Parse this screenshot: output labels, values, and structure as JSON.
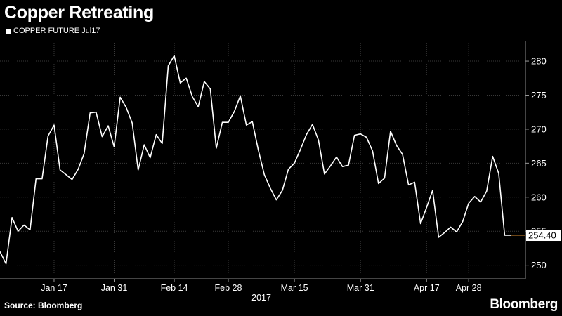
{
  "header": {
    "title": "Copper Retreating"
  },
  "legend": {
    "label": "COPPER FUTURE Jul17"
  },
  "footer": {
    "source": "Source: Bloomberg",
    "brand": "Bloomberg"
  },
  "colors": {
    "background": "#000000",
    "line": "#ffffff",
    "grid": "#3a3a3a",
    "last_marker": "#d98a2b"
  },
  "chart_data": {
    "type": "line",
    "title": "Copper Retreating",
    "xlabel": "2017",
    "ylabel": "",
    "ylim": [
      248,
      283
    ],
    "yticks": [
      250,
      255,
      260,
      265,
      270,
      275,
      280
    ],
    "xticks": [
      "Jan 17",
      "Jan 31",
      "Feb 14",
      "Feb 28",
      "Mar 15",
      "Mar 31",
      "Apr 17",
      "Apr 28"
    ],
    "xtick_positions": [
      9,
      19,
      29,
      38,
      49,
      60,
      71,
      78
    ],
    "last_value_label": "254.40",
    "grid": true,
    "series": [
      {
        "name": "COPPER FUTURE Jul17",
        "values": [
          252.0,
          250.2,
          257.0,
          255.0,
          255.9,
          255.2,
          262.7,
          262.7,
          269.0,
          270.6,
          264.0,
          263.3,
          262.6,
          264.1,
          266.4,
          272.4,
          272.5,
          268.9,
          270.5,
          267.4,
          274.7,
          273.2,
          270.9,
          264.0,
          267.7,
          265.8,
          269.2,
          267.9,
          279.3,
          280.8,
          276.8,
          277.5,
          274.8,
          273.3,
          277.0,
          275.9,
          267.2,
          271.0,
          271.0,
          272.6,
          274.9,
          270.6,
          271.1,
          266.9,
          263.3,
          261.3,
          259.6,
          261.0,
          264.1,
          265.0,
          267.0,
          269.2,
          270.7,
          268.4,
          263.4,
          264.6,
          265.9,
          264.5,
          264.7,
          269.1,
          269.3,
          268.8,
          266.8,
          262.0,
          262.8,
          269.7,
          267.6,
          266.3,
          261.8,
          262.2,
          256.1,
          258.5,
          261.0,
          254.1,
          254.8,
          255.6,
          254.9,
          256.4,
          259.1,
          260.1,
          259.3,
          260.9,
          266.0,
          263.5,
          254.4,
          254.4
        ]
      }
    ]
  }
}
